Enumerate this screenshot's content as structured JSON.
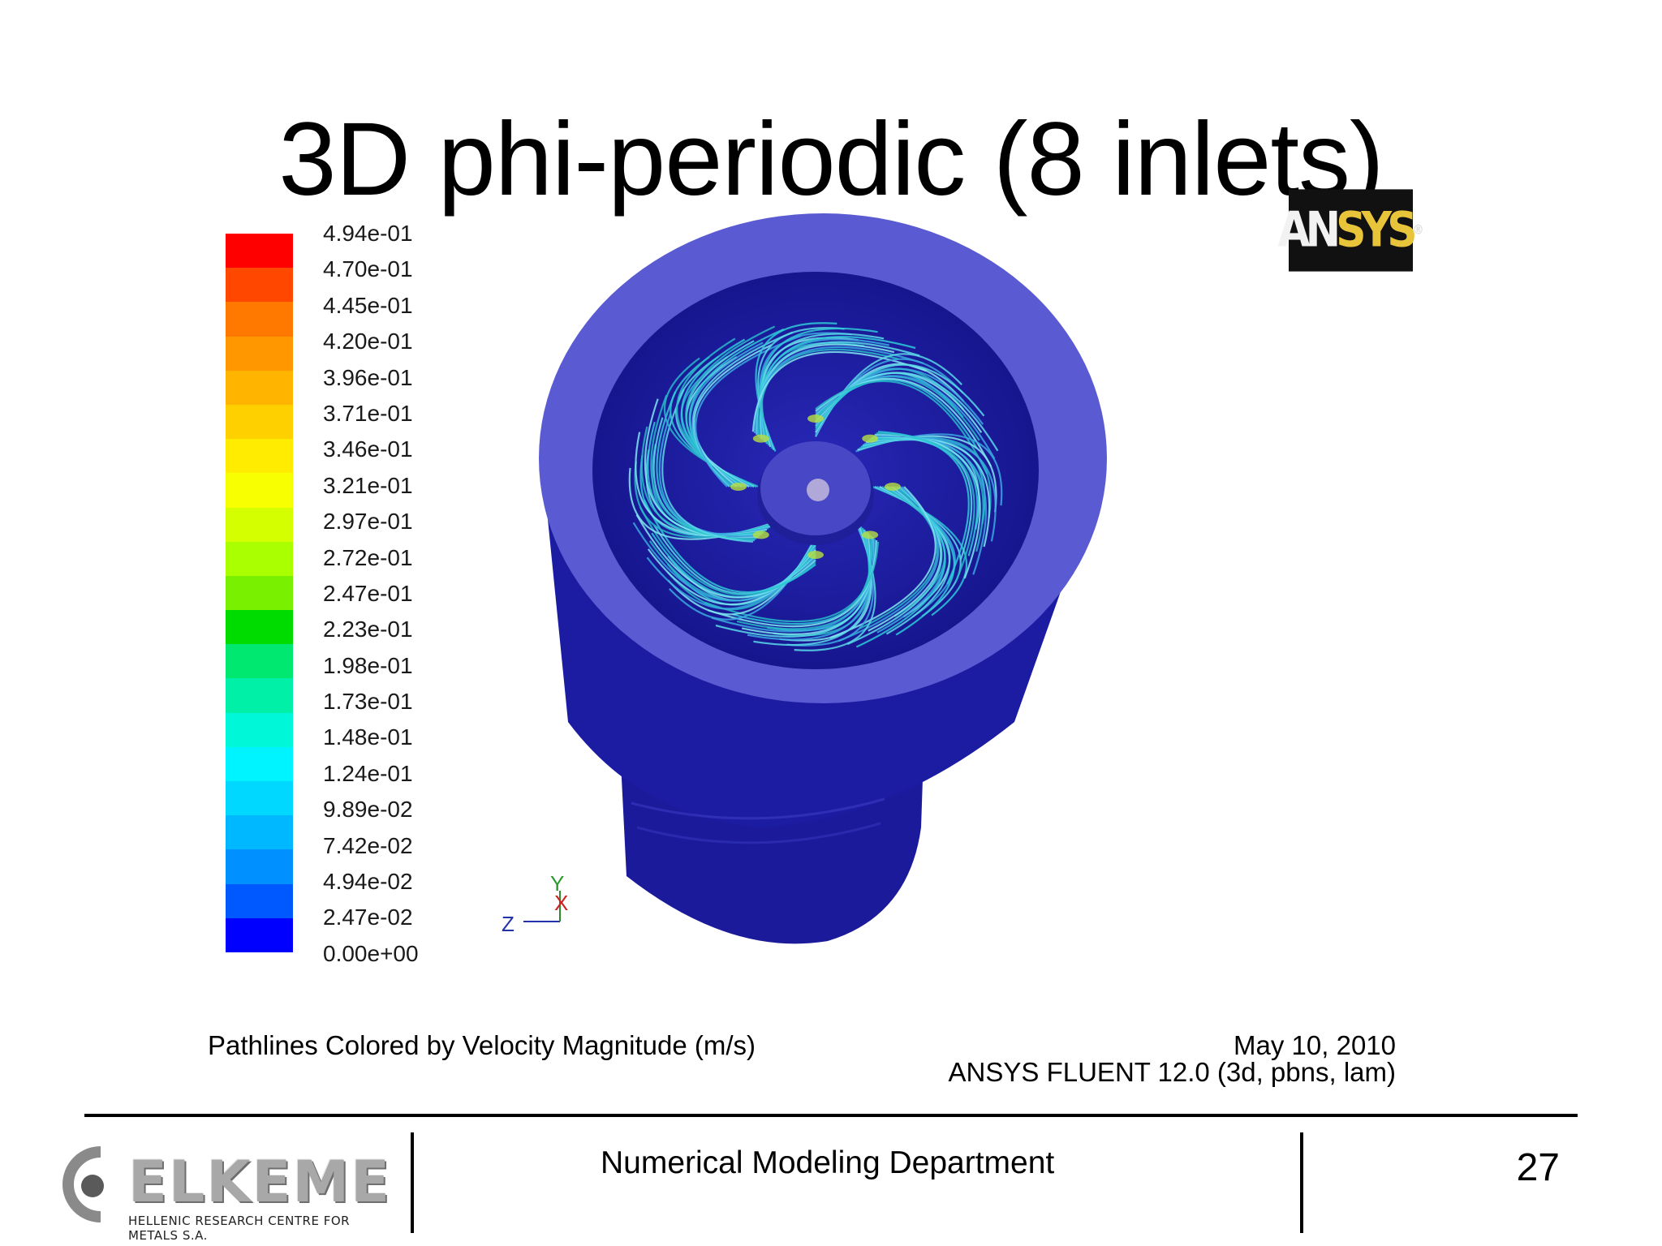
{
  "slide": {
    "title": "3D phi-periodic (8 inlets)",
    "page_number": "27",
    "department": "Numerical Modeling Department"
  },
  "logos": {
    "ansys": "ANSYS",
    "elkeme": "ELKEME",
    "elkeme_subtitle": "HELLENIC RESEARCH CENTRE FOR METALS S.A."
  },
  "figure": {
    "caption": "Pathlines Colored by Velocity Magnitude (m/s)",
    "date": "May 10, 2010",
    "software": "ANSYS FLUENT 12.0 (3d, pbns, lam)",
    "axis_triad": {
      "y": "Y",
      "x": "X",
      "z": "Z"
    },
    "colors": {
      "body": "#1a1a9e",
      "rim": "#5a5ad2",
      "background": "#ffffff"
    }
  },
  "colorbar": {
    "labels": [
      "4.94e-01",
      "4.70e-01",
      "4.45e-01",
      "4.20e-01",
      "3.96e-01",
      "3.71e-01",
      "3.46e-01",
      "3.21e-01",
      "2.97e-01",
      "2.72e-01",
      "2.47e-01",
      "2.23e-01",
      "1.98e-01",
      "1.73e-01",
      "1.48e-01",
      "1.24e-01",
      "9.89e-02",
      "7.42e-02",
      "4.94e-02",
      "2.47e-02",
      "0.00e+00"
    ],
    "colors": [
      "#ff0000",
      "#ff4700",
      "#ff7800",
      "#ff9800",
      "#ffb400",
      "#ffd000",
      "#ffec00",
      "#f8ff00",
      "#d4ff00",
      "#aaff00",
      "#78f000",
      "#00dc00",
      "#00e870",
      "#00f0a8",
      "#00f8d8",
      "#00f4ff",
      "#00d8ff",
      "#00b8ff",
      "#0090ff",
      "#0058ff",
      "#0000ff"
    ]
  }
}
